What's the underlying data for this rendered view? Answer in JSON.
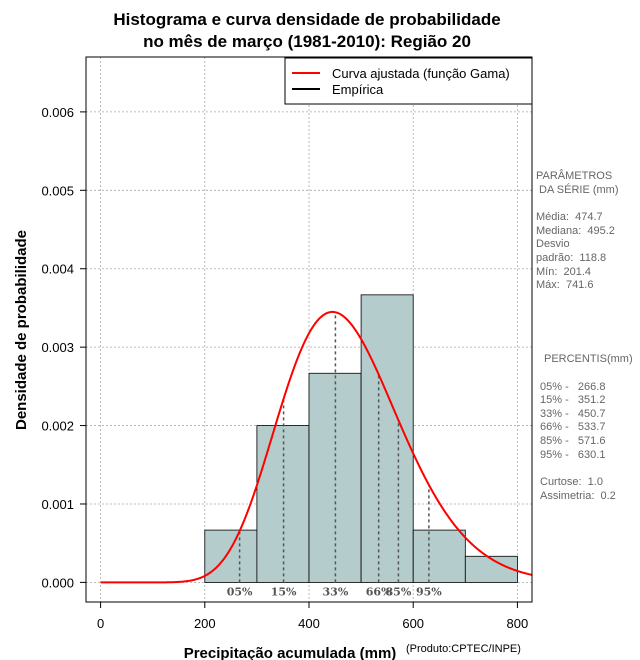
{
  "chart_data": {
    "type": "histogram",
    "title_lines": [
      "Histograma e curva densidade de probabilidade",
      "no mês de março (1981-2010): Região 20"
    ],
    "xlabel": "Precipitação acumulada (mm)",
    "ylabel": "Densidade de probabilidade",
    "source_note": "(Produto:CPTEC/INPE)",
    "xlim": [
      -28,
      828
    ],
    "ylim": [
      -0.00025,
      0.0067
    ],
    "x_ticks": [
      0,
      200,
      400,
      600,
      800
    ],
    "x_tick_labels": [
      "0",
      "200",
      "400",
      "600",
      "800"
    ],
    "y_ticks": [
      0.0,
      0.001,
      0.002,
      0.003,
      0.004,
      0.005,
      0.006
    ],
    "y_tick_labels": [
      "0.000",
      "0.001",
      "0.002",
      "0.003",
      "0.004",
      "0.005",
      "0.006"
    ],
    "grid": true,
    "bins": [
      {
        "x0": 200,
        "x1": 300,
        "density": 0.000667
      },
      {
        "x0": 300,
        "x1": 400,
        "density": 0.002
      },
      {
        "x0": 400,
        "x1": 500,
        "density": 0.002667
      },
      {
        "x0": 500,
        "x1": 600,
        "density": 0.003667
      },
      {
        "x0": 600,
        "x1": 700,
        "density": 0.000667
      },
      {
        "x0": 700,
        "x1": 800,
        "density": 0.000333
      }
    ],
    "gamma_curve": {
      "name": "Curva ajustada (função Gama)",
      "mean": 474.7,
      "sd": 118.8,
      "color": "#ff0000"
    },
    "empirical": {
      "name": "Empírica",
      "color": "#000000"
    },
    "legend_position": "top-right",
    "percentile_lines": [
      {
        "label": "05%",
        "value": 266.8
      },
      {
        "label": "15%",
        "value": 351.2
      },
      {
        "label": "33%",
        "value": 450.7
      },
      {
        "label": "66%",
        "value": 533.7
      },
      {
        "label": "85%",
        "value": 571.6
      },
      {
        "label": "95%",
        "value": 630.1
      }
    ],
    "bar_color": "#b4cccc"
  },
  "side_panel": {
    "params_title_1": "PARÂMETROS",
    "params_title_2": " DA SÉRIE (mm)",
    "params": [
      "Média:  474.7",
      "Mediana:  495.2",
      "Desvio",
      "padrão:  118.8",
      "Mín:  201.4",
      "Máx:  741.6"
    ],
    "percentis_title": "PERCENTIS(mm)",
    "percentis": [
      "05% -   266.8",
      "15% -   351.2",
      "33% -   450.7",
      "66% -   533.7",
      "85% -   571.6",
      "95% -   630.1"
    ],
    "curtose": "Curtose:  1.0",
    "assimetria": "Assimetria:  0.2"
  }
}
